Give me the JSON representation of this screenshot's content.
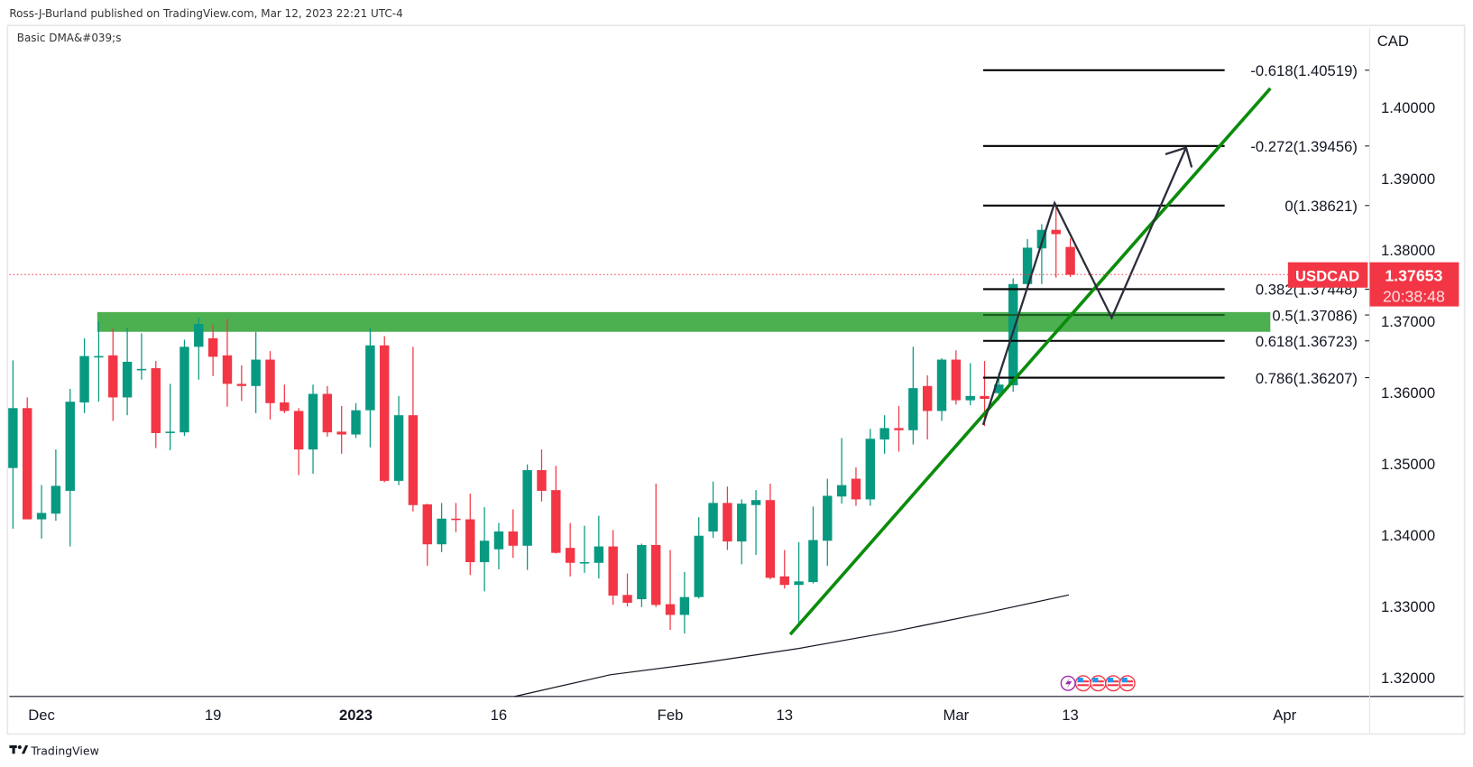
{
  "header": {
    "published_line": "Ross-J-Burland published on TradingView.com, Mar 12, 2023 22:21 UTC-4",
    "indicator_label": "Basic DMA&#039;s"
  },
  "footer": {
    "brand": "TradingView"
  },
  "colors": {
    "up": "#089981",
    "down": "#f23645",
    "zone": "#4caf50",
    "trend": "#0b8c0b",
    "ma": "#131722"
  },
  "chart_data": {
    "type": "candlestick",
    "symbol": "USDCAD",
    "currency_label": "CAD",
    "last_price": "1.37653",
    "last_price_value": 1.37653,
    "countdown": "20:38:48",
    "ylim": [
      1.3145,
      1.4165
    ],
    "y_ticks": [
      "1.40000",
      "1.39000",
      "1.38000",
      "1.37000",
      "1.36000",
      "1.35000",
      "1.34000",
      "1.33000",
      "1.32000"
    ],
    "y_tick_values": [
      1.4,
      1.39,
      1.38,
      1.37,
      1.36,
      1.35,
      1.34,
      1.33,
      1.32
    ],
    "x_ticks": [
      {
        "label": "Dec",
        "bar": 2,
        "bold": false
      },
      {
        "label": "19",
        "bar": 14,
        "bold": false
      },
      {
        "label": "2023",
        "bar": 24,
        "bold": true
      },
      {
        "label": "16",
        "bar": 34,
        "bold": false
      },
      {
        "label": "Feb",
        "bar": 46,
        "bold": false
      },
      {
        "label": "13",
        "bar": 54,
        "bold": false
      },
      {
        "label": "Mar",
        "bar": 66,
        "bold": false
      },
      {
        "label": "13",
        "bar": 74,
        "bold": false
      },
      {
        "label": "Apr",
        "bar": 89,
        "bold": false
      }
    ],
    "ohlc": [
      [
        1.3494,
        1.3645,
        1.3409,
        1.3578
      ],
      [
        1.3578,
        1.3593,
        1.3422,
        1.3422
      ],
      [
        1.3422,
        1.347,
        1.3395,
        1.3431
      ],
      [
        1.343,
        1.352,
        1.342,
        1.3469
      ],
      [
        1.3462,
        1.3605,
        1.3384,
        1.3587
      ],
      [
        1.3586,
        1.3676,
        1.3571,
        1.3651
      ],
      [
        1.365,
        1.37,
        1.3587,
        1.3651
      ],
      [
        1.3652,
        1.369,
        1.356,
        1.3593
      ],
      [
        1.3593,
        1.3691,
        1.3568,
        1.3643
      ],
      [
        1.3631,
        1.3683,
        1.3618,
        1.3633
      ],
      [
        1.3634,
        1.3644,
        1.3522,
        1.3543
      ],
      [
        1.3544,
        1.3612,
        1.3519,
        1.3545
      ],
      [
        1.3544,
        1.3674,
        1.3539,
        1.3664
      ],
      [
        1.3664,
        1.3705,
        1.3618,
        1.3696
      ],
      [
        1.3676,
        1.3695,
        1.3623,
        1.365
      ],
      [
        1.3652,
        1.3703,
        1.358,
        1.3612
      ],
      [
        1.3612,
        1.3638,
        1.3588,
        1.3609
      ],
      [
        1.3609,
        1.3685,
        1.3571,
        1.3646
      ],
      [
        1.3646,
        1.3658,
        1.3562,
        1.3585
      ],
      [
        1.3586,
        1.3611,
        1.3571,
        1.3574
      ],
      [
        1.3574,
        1.3578,
        1.3484,
        1.352
      ],
      [
        1.352,
        1.3611,
        1.3486,
        1.3598
      ],
      [
        1.3598,
        1.3609,
        1.3538,
        1.3544
      ],
      [
        1.3545,
        1.3581,
        1.3514,
        1.3541
      ],
      [
        1.3541,
        1.3585,
        1.3536,
        1.3575
      ],
      [
        1.3575,
        1.369,
        1.3523,
        1.3666
      ],
      [
        1.3666,
        1.3679,
        1.3474,
        1.3476
      ],
      [
        1.3476,
        1.3595,
        1.347,
        1.3568
      ],
      [
        1.3568,
        1.3664,
        1.3433,
        1.3442
      ],
      [
        1.3443,
        1.3444,
        1.3357,
        1.3387
      ],
      [
        1.3387,
        1.3445,
        1.3376,
        1.3423
      ],
      [
        1.3423,
        1.3445,
        1.3404,
        1.3422
      ],
      [
        1.3422,
        1.3458,
        1.3344,
        1.3362
      ],
      [
        1.3362,
        1.3439,
        1.3321,
        1.3392
      ],
      [
        1.338,
        1.3417,
        1.3352,
        1.3405
      ],
      [
        1.3405,
        1.3436,
        1.3368,
        1.3385
      ],
      [
        1.3385,
        1.3499,
        1.3351,
        1.3491
      ],
      [
        1.3491,
        1.352,
        1.3447,
        1.3462
      ],
      [
        1.3463,
        1.3497,
        1.3374,
        1.3375
      ],
      [
        1.3382,
        1.3417,
        1.3342,
        1.3361
      ],
      [
        1.3361,
        1.3413,
        1.3347,
        1.3362
      ],
      [
        1.3361,
        1.3427,
        1.3339,
        1.3384
      ],
      [
        1.3384,
        1.3407,
        1.3302,
        1.3315
      ],
      [
        1.3316,
        1.3346,
        1.33,
        1.3305
      ],
      [
        1.331,
        1.3388,
        1.3299,
        1.3386
      ],
      [
        1.3386,
        1.3472,
        1.3299,
        1.3302
      ],
      [
        1.3303,
        1.3379,
        1.3267,
        1.3288
      ],
      [
        1.3288,
        1.3348,
        1.3262,
        1.3313
      ],
      [
        1.3313,
        1.3425,
        1.3311,
        1.3399
      ],
      [
        1.3405,
        1.3475,
        1.3396,
        1.3445
      ],
      [
        1.3445,
        1.3468,
        1.3379,
        1.3391
      ],
      [
        1.3391,
        1.345,
        1.3359,
        1.3444
      ],
      [
        1.3442,
        1.3463,
        1.3372,
        1.3449
      ],
      [
        1.3449,
        1.3472,
        1.3338,
        1.334
      ],
      [
        1.3342,
        1.3379,
        1.3325,
        1.333
      ],
      [
        1.333,
        1.339,
        1.3274,
        1.3335
      ],
      [
        1.3334,
        1.344,
        1.3332,
        1.3393
      ],
      [
        1.3392,
        1.3479,
        1.3357,
        1.3455
      ],
      [
        1.3454,
        1.3536,
        1.3444,
        1.347
      ],
      [
        1.3479,
        1.3495,
        1.3441,
        1.345
      ],
      [
        1.345,
        1.3549,
        1.3441,
        1.3535
      ],
      [
        1.3534,
        1.3568,
        1.3514,
        1.355
      ],
      [
        1.355,
        1.3581,
        1.3517,
        1.3547
      ],
      [
        1.3547,
        1.3664,
        1.3527,
        1.3606
      ],
      [
        1.3609,
        1.3624,
        1.3534,
        1.3574
      ],
      [
        1.3574,
        1.3648,
        1.356,
        1.3646
      ],
      [
        1.3646,
        1.3659,
        1.3583,
        1.3589
      ],
      [
        1.3589,
        1.3641,
        1.3582,
        1.3595
      ],
      [
        1.3595,
        1.3644,
        1.3553,
        1.3591
      ],
      [
        1.3599,
        1.3628,
        1.3589,
        1.3611
      ],
      [
        1.361,
        1.376,
        1.3601,
        1.3752
      ],
      [
        1.3752,
        1.3815,
        1.3745,
        1.3803
      ],
      [
        1.3802,
        1.3836,
        1.3752,
        1.3828
      ],
      [
        1.3828,
        1.3863,
        1.3761,
        1.3822
      ],
      [
        1.3804,
        1.3816,
        1.3762,
        1.3765
      ]
    ],
    "moving_average": [
      [
        35.1,
        1.31736
      ],
      [
        41.8,
        1.3204
      ],
      [
        48.4,
        1.32211
      ],
      [
        55.0,
        1.32409
      ],
      [
        61.6,
        1.32646
      ],
      [
        68.1,
        1.3291
      ],
      [
        73.9,
        1.3316
      ]
    ],
    "resistance_zone": {
      "bar_start": 5.9,
      "bar_end": 88.0,
      "top": 1.37127,
      "bottom": 1.3685
    },
    "trendline": [
      [
        54.4,
        1.32606
      ],
      [
        88.0,
        1.40264
      ]
    ],
    "projection_path": [
      [
        67.9,
        1.35545
      ],
      [
        72.9,
        1.38656
      ],
      [
        76.9,
        1.37048
      ],
      [
        82.1,
        1.39433
      ]
    ],
    "fib_range_bars": [
      67.9,
      84.8
    ],
    "fib_levels": [
      {
        "label": "-0.618(1.40519)",
        "price": 1.40519
      },
      {
        "label": "-0.272(1.39456)",
        "price": 1.39456
      },
      {
        "label": "0(1.38621)",
        "price": 1.38621
      },
      {
        "label": "0.382(1.37448)",
        "price": 1.37448
      },
      {
        "label": "0.5(1.37086)",
        "price": 1.37086
      },
      {
        "label": "0.618(1.36723)",
        "price": 1.36723
      },
      {
        "label": "0.786(1.36207)",
        "price": 1.36207
      }
    ]
  }
}
